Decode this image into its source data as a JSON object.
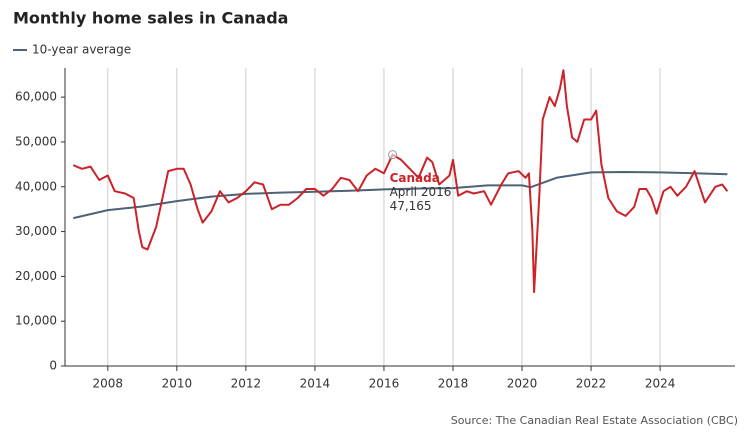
{
  "chart_data": {
    "type": "line",
    "title": "Monthly home sales in Canada",
    "source": "Source: The Canadian Real Estate Association (CBC)",
    "xlim": [
      2006.76,
      2026.17
    ],
    "xticks": [
      2008,
      2010,
      2012,
      2014,
      2016,
      2018,
      2020,
      2022,
      2024
    ],
    "ylim": [
      0,
      66500
    ],
    "yticks": [
      0,
      {
        "value": 10000,
        "label": "10,000"
      },
      {
        "value": 20000,
        "label": "20,000"
      },
      {
        "value": 30000,
        "label": "30,000"
      },
      {
        "value": 40000,
        "label": "40,000"
      },
      {
        "value": 50000,
        "label": "50,000"
      },
      {
        "value": 60000,
        "label": "60,000"
      }
    ],
    "grid": "x",
    "series": [
      {
        "name": "Canada",
        "color": "#cc2229",
        "in_legend": false,
        "x": [
          2007.0,
          2007.25,
          2007.5,
          2007.75,
          2008.0,
          2008.2,
          2008.5,
          2008.75,
          2008.9,
          2009.0,
          2009.15,
          2009.4,
          2009.6,
          2009.75,
          2010.0,
          2010.2,
          2010.4,
          2010.6,
          2010.75,
          2011.0,
          2011.25,
          2011.5,
          2011.75,
          2012.0,
          2012.25,
          2012.5,
          2012.75,
          2013.0,
          2013.25,
          2013.5,
          2013.75,
          2014.0,
          2014.25,
          2014.5,
          2014.75,
          2015.0,
          2015.25,
          2015.5,
          2015.75,
          2016.0,
          2016.25,
          2016.5,
          2016.75,
          2017.0,
          2017.25,
          2017.4,
          2017.6,
          2017.9,
          2018.0,
          2018.15,
          2018.4,
          2018.6,
          2018.9,
          2019.1,
          2019.4,
          2019.6,
          2019.9,
          2020.1,
          2020.2,
          2020.3,
          2020.35,
          2020.5,
          2020.6,
          2020.8,
          2020.95,
          2021.1,
          2021.2,
          2021.3,
          2021.45,
          2021.6,
          2021.8,
          2022.0,
          2022.15,
          2022.3,
          2022.5,
          2022.75,
          2023.0,
          2023.25,
          2023.4,
          2023.6,
          2023.75,
          2023.9,
          2024.1,
          2024.3,
          2024.5,
          2024.75,
          2025.0,
          2025.3,
          2025.6,
          2025.8,
          2025.95
        ],
        "values": [
          44800,
          44000,
          44500,
          41500,
          42500,
          39000,
          38500,
          37500,
          30000,
          26500,
          26000,
          31000,
          38000,
          43500,
          44000,
          44000,
          40500,
          35000,
          32000,
          34500,
          39000,
          36500,
          37500,
          39000,
          41000,
          40500,
          35000,
          36000,
          36000,
          37500,
          39500,
          39500,
          38000,
          39500,
          42000,
          41500,
          39000,
          42500,
          44000,
          43000,
          47165,
          46000,
          44000,
          42000,
          46500,
          45500,
          40500,
          42500,
          46000,
          38000,
          39000,
          38500,
          39000,
          36000,
          40500,
          43000,
          43500,
          42000,
          43000,
          30000,
          16500,
          38000,
          55000,
          60000,
          58000,
          62000,
          66000,
          58000,
          51000,
          50000,
          55000,
          55000,
          57000,
          45000,
          37500,
          34500,
          33500,
          35500,
          39500,
          39500,
          37500,
          34000,
          39000,
          40000,
          38000,
          40000,
          43500,
          36500,
          40000,
          40500,
          39000
        ]
      },
      {
        "name": "10-year average",
        "color": "#4d6275",
        "in_legend": true,
        "x": [
          2007,
          2008,
          2009,
          2010,
          2011,
          2012,
          2013,
          2014,
          2015,
          2016,
          2017,
          2018,
          2019,
          2020,
          2020.25,
          2021,
          2022,
          2023,
          2024,
          2025,
          2025.95
        ],
        "values": [
          33000,
          34800,
          35600,
          36800,
          37800,
          38400,
          38700,
          38900,
          39100,
          39400,
          39600,
          39700,
          40300,
          40300,
          39900,
          42000,
          43200,
          43300,
          43200,
          43000,
          42800
        ]
      }
    ],
    "annotation": {
      "x": 2016.25,
      "y": 47165,
      "date": "April 2016",
      "label": "47,165"
    }
  }
}
